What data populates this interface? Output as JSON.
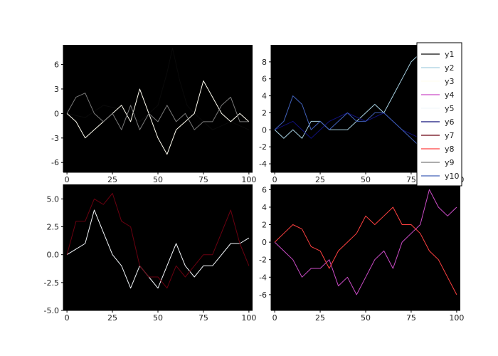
{
  "legend": {
    "position": "top-right",
    "entries": [
      {
        "name": "y1",
        "color": "#0a0a0a"
      },
      {
        "name": "y2",
        "color": "#a6cfe0"
      },
      {
        "name": "y3",
        "color": "#fffdf0"
      },
      {
        "name": "y4",
        "color": "#cc4cc8"
      },
      {
        "name": "y5",
        "color": "#f2f6fa"
      },
      {
        "name": "y6",
        "color": "#10107a"
      },
      {
        "name": "y7",
        "color": "#6a0010"
      },
      {
        "name": "y8",
        "color": "#ff4040"
      },
      {
        "name": "y9",
        "color": "#7a7a7a"
      },
      {
        "name": "y10",
        "color": "#4060b8"
      }
    ]
  },
  "chart_data": [
    {
      "type": "line",
      "panel": "top-left",
      "background": "#000000",
      "grid": false,
      "xlim": [
        -2,
        102
      ],
      "ylim": [
        -7.2,
        8.4
      ],
      "xticks": [
        0,
        25,
        50,
        75,
        100
      ],
      "yticks": [
        -6,
        -3,
        0,
        3,
        6
      ],
      "series": [
        {
          "name": "y1",
          "color": "#0a0a0a",
          "points": [
            [
              0,
              0
            ],
            [
              10,
              -0.5
            ],
            [
              20,
              1
            ],
            [
              30,
              0.5
            ],
            [
              40,
              -1
            ],
            [
              50,
              1
            ],
            [
              55,
              5
            ],
            [
              58,
              8
            ],
            [
              62,
              4
            ],
            [
              66,
              1
            ],
            [
              70,
              0
            ],
            [
              80,
              -2
            ],
            [
              90,
              -1
            ],
            [
              100,
              -2
            ]
          ]
        },
        {
          "name": "y3",
          "color": "#fffdf0",
          "points": [
            [
              0,
              0
            ],
            [
              5,
              -1
            ],
            [
              10,
              -3
            ],
            [
              15,
              -2
            ],
            [
              20,
              -1
            ],
            [
              25,
              0
            ],
            [
              30,
              1
            ],
            [
              35,
              -1
            ],
            [
              40,
              3
            ],
            [
              45,
              0
            ],
            [
              50,
              -3
            ],
            [
              55,
              -5
            ],
            [
              60,
              -2
            ],
            [
              65,
              -1
            ],
            [
              70,
              0
            ],
            [
              75,
              4
            ],
            [
              80,
              2
            ],
            [
              85,
              0
            ],
            [
              90,
              -1
            ],
            [
              95,
              0
            ],
            [
              100,
              -1
            ]
          ]
        },
        {
          "name": "y9",
          "color": "#7a7a7a",
          "points": [
            [
              0,
              0
            ],
            [
              5,
              2
            ],
            [
              10,
              2.5
            ],
            [
              15,
              0
            ],
            [
              20,
              -1
            ],
            [
              25,
              0
            ],
            [
              30,
              -2
            ],
            [
              35,
              1
            ],
            [
              40,
              -2
            ],
            [
              45,
              0
            ],
            [
              50,
              -1
            ],
            [
              55,
              1
            ],
            [
              60,
              -1
            ],
            [
              65,
              0
            ],
            [
              70,
              -2
            ],
            [
              75,
              -1
            ],
            [
              80,
              -1
            ],
            [
              85,
              1
            ],
            [
              90,
              2
            ],
            [
              95,
              -1
            ],
            [
              100,
              -1
            ]
          ]
        }
      ]
    },
    {
      "type": "line",
      "panel": "top-right",
      "background": "#000000",
      "grid": false,
      "xlim": [
        -2,
        102
      ],
      "ylim": [
        -5,
        10
      ],
      "xticks": [
        0,
        25,
        50,
        75,
        100
      ],
      "yticks": [
        -4,
        -2,
        0,
        2,
        4,
        6,
        8
      ],
      "series": [
        {
          "name": "y2",
          "color": "#a6cfe0",
          "points": [
            [
              0,
              0
            ],
            [
              5,
              -1
            ],
            [
              10,
              0
            ],
            [
              15,
              -1
            ],
            [
              20,
              1
            ],
            [
              25,
              1
            ],
            [
              30,
              0
            ],
            [
              35,
              0
            ],
            [
              40,
              0
            ],
            [
              45,
              1
            ],
            [
              50,
              2
            ],
            [
              55,
              3
            ],
            [
              60,
              2
            ],
            [
              65,
              4
            ],
            [
              70,
              6
            ],
            [
              75,
              8
            ],
            [
              80,
              9
            ],
            [
              85,
              7
            ],
            [
              90,
              6
            ],
            [
              95,
              5
            ],
            [
              100,
              6
            ]
          ]
        },
        {
          "name": "y6",
          "color": "#10107a",
          "points": [
            [
              0,
              0
            ],
            [
              10,
              1
            ],
            [
              20,
              -1
            ],
            [
              30,
              1
            ],
            [
              40,
              2
            ],
            [
              50,
              1
            ],
            [
              60,
              2
            ],
            [
              70,
              0
            ],
            [
              80,
              -1
            ],
            [
              90,
              -2
            ],
            [
              100,
              -2
            ]
          ]
        },
        {
          "name": "y10",
          "color": "#4060b8",
          "points": [
            [
              0,
              0
            ],
            [
              5,
              1
            ],
            [
              10,
              4
            ],
            [
              15,
              3
            ],
            [
              20,
              0
            ],
            [
              25,
              1
            ],
            [
              30,
              0
            ],
            [
              35,
              1
            ],
            [
              40,
              2
            ],
            [
              45,
              1
            ],
            [
              50,
              1
            ],
            [
              55,
              2
            ],
            [
              60,
              2
            ],
            [
              65,
              1
            ],
            [
              70,
              0
            ],
            [
              75,
              -1
            ],
            [
              80,
              -2
            ],
            [
              85,
              -3
            ],
            [
              90,
              -3
            ],
            [
              95,
              -2
            ],
            [
              100,
              -3
            ]
          ]
        }
      ]
    },
    {
      "type": "line",
      "panel": "bottom-left",
      "background": "#000000",
      "grid": false,
      "xlim": [
        -2,
        102
      ],
      "ylim": [
        -5,
        6.3
      ],
      "xticks": [
        0,
        25,
        50,
        75,
        100
      ],
      "yticks": [
        -5.0,
        -2.5,
        0.0,
        2.5,
        5.0
      ],
      "tick_format": "one_decimal",
      "series": [
        {
          "name": "y5",
          "color": "#f2f6fa",
          "points": [
            [
              0,
              0
            ],
            [
              5,
              0.5
            ],
            [
              10,
              1
            ],
            [
              15,
              4
            ],
            [
              20,
              2
            ],
            [
              25,
              0
            ],
            [
              30,
              -1
            ],
            [
              35,
              -3
            ],
            [
              40,
              -1
            ],
            [
              45,
              -2
            ],
            [
              50,
              -3
            ],
            [
              55,
              -1
            ],
            [
              60,
              1
            ],
            [
              65,
              -1
            ],
            [
              70,
              -2
            ],
            [
              75,
              -1
            ],
            [
              80,
              -1
            ],
            [
              85,
              0
            ],
            [
              90,
              1
            ],
            [
              95,
              1
            ],
            [
              100,
              1.5
            ]
          ]
        },
        {
          "name": "y7",
          "color": "#6a0010",
          "points": [
            [
              0,
              0
            ],
            [
              5,
              3
            ],
            [
              10,
              3
            ],
            [
              15,
              5
            ],
            [
              20,
              4.5
            ],
            [
              25,
              5.5
            ],
            [
              30,
              3
            ],
            [
              35,
              2.5
            ],
            [
              40,
              -1
            ],
            [
              45,
              -2
            ],
            [
              50,
              -2
            ],
            [
              55,
              -3
            ],
            [
              60,
              -1
            ],
            [
              65,
              -2
            ],
            [
              70,
              -1
            ],
            [
              75,
              0
            ],
            [
              80,
              0
            ],
            [
              85,
              2
            ],
            [
              90,
              4
            ],
            [
              95,
              1
            ],
            [
              100,
              -1
            ]
          ]
        }
      ]
    },
    {
      "type": "line",
      "panel": "bottom-right",
      "background": "#000000",
      "grid": false,
      "xlim": [
        -2,
        102
      ],
      "ylim": [
        -7.8,
        6.6
      ],
      "xticks": [
        0,
        25,
        50,
        75,
        100
      ],
      "yticks": [
        -6,
        -4,
        -2,
        0,
        2,
        4,
        6
      ],
      "series": [
        {
          "name": "y4",
          "color": "#cc4cc8",
          "points": [
            [
              0,
              0
            ],
            [
              5,
              -1
            ],
            [
              10,
              -2
            ],
            [
              15,
              -4
            ],
            [
              20,
              -3
            ],
            [
              25,
              -3
            ],
            [
              30,
              -2
            ],
            [
              35,
              -5
            ],
            [
              40,
              -4
            ],
            [
              45,
              -6
            ],
            [
              50,
              -4
            ],
            [
              55,
              -2
            ],
            [
              60,
              -1
            ],
            [
              65,
              -3
            ],
            [
              70,
              0
            ],
            [
              75,
              1
            ],
            [
              80,
              2
            ],
            [
              85,
              6
            ],
            [
              90,
              4
            ],
            [
              95,
              3
            ],
            [
              100,
              4
            ]
          ]
        },
        {
          "name": "y8",
          "color": "#ff4040",
          "points": [
            [
              0,
              0
            ],
            [
              5,
              1
            ],
            [
              10,
              2
            ],
            [
              15,
              1.5
            ],
            [
              20,
              -0.5
            ],
            [
              25,
              -1
            ],
            [
              30,
              -3
            ],
            [
              35,
              -1
            ],
            [
              40,
              0
            ],
            [
              45,
              1
            ],
            [
              50,
              3
            ],
            [
              55,
              2
            ],
            [
              60,
              3
            ],
            [
              65,
              4
            ],
            [
              70,
              2
            ],
            [
              75,
              2
            ],
            [
              80,
              1
            ],
            [
              85,
              -1
            ],
            [
              90,
              -2
            ],
            [
              95,
              -4
            ],
            [
              100,
              -6
            ]
          ]
        }
      ]
    }
  ]
}
